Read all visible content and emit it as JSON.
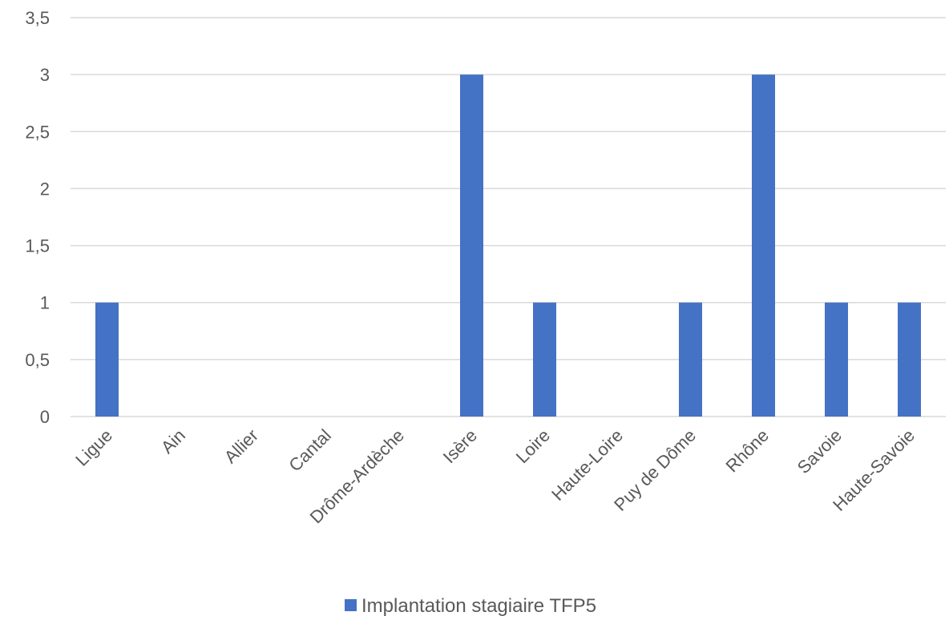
{
  "chart_data": {
    "type": "bar",
    "categories": [
      "Ligue",
      "Ain",
      "Allier",
      "Cantal",
      "Drôme-Ardèche",
      "Isère",
      "Loire",
      "Haute-Loire",
      "Puy de Dôme",
      "Rhône",
      "Savoie",
      "Haute-Savoie"
    ],
    "series": [
      {
        "name": "Implantation stagiaire TFP5",
        "values": [
          1,
          0,
          0,
          0,
          0,
          3,
          1,
          0,
          1,
          3,
          1,
          1
        ],
        "color": "#4472C4"
      }
    ],
    "y_ticks": [
      "0",
      "0,5",
      "1",
      "1,5",
      "2",
      "2,5",
      "3",
      "3,5"
    ],
    "ylim": [
      0,
      3.5
    ],
    "grid": true,
    "grid_color": "#D9D9D9",
    "legend_position": "bottom",
    "title": "",
    "xlabel": "",
    "ylabel": ""
  }
}
